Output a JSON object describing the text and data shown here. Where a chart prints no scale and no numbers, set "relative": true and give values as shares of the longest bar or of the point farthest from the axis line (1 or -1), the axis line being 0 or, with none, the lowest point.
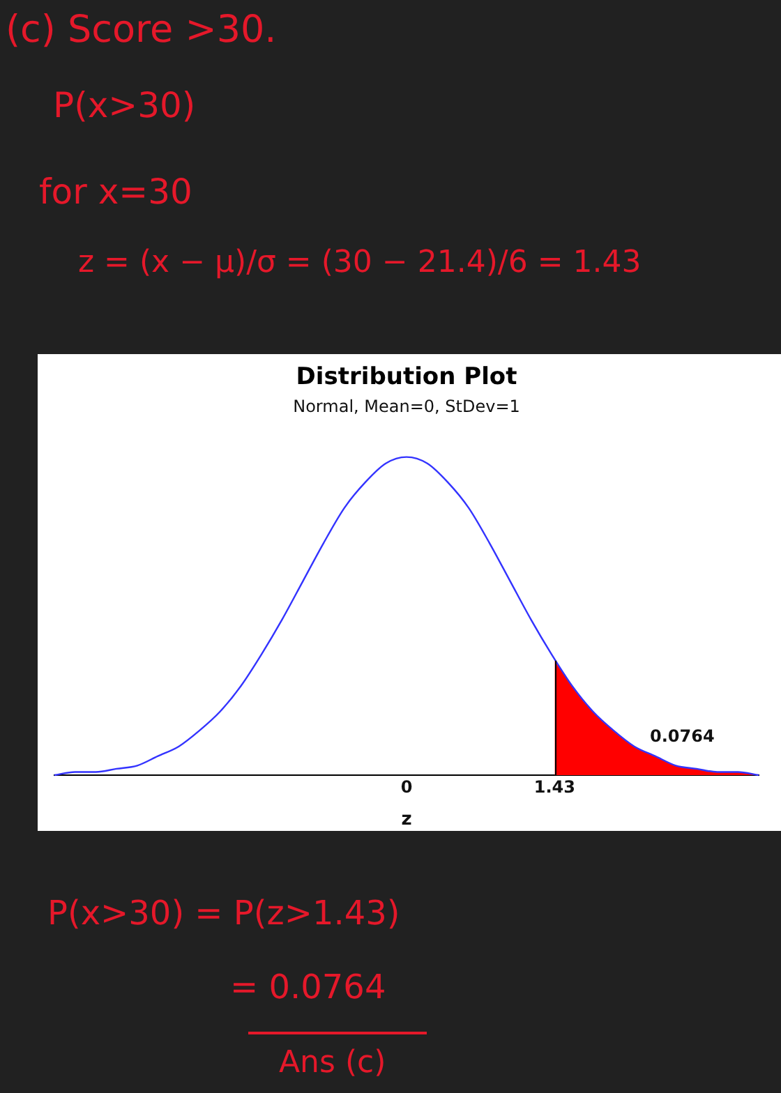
{
  "chart_data": {
    "type": "line",
    "title": "Distribution Plot",
    "subtitle": "Normal, Mean=0, StDev=1",
    "xlabel": "z",
    "relative": true,
    "xlim": [
      -3.4,
      3.4
    ],
    "xticks": [
      0,
      1.43
    ],
    "marker": "none",
    "series": [
      {
        "type": "line",
        "color": "#3333ff",
        "x": [
          -3.4,
          -3.2,
          -3.0,
          -2.8,
          -2.6,
          -2.4,
          -2.2,
          -2.0,
          -1.8,
          -1.6,
          -1.4,
          -1.2,
          -1.0,
          -0.8,
          -0.6,
          -0.4,
          -0.2,
          0,
          0.2,
          0.4,
          0.6,
          0.8,
          1.0,
          1.2,
          1.4,
          1.6,
          1.8,
          2.0,
          2.2,
          2.4,
          2.6,
          2.8,
          3.0,
          3.2,
          3.4
        ],
        "values": [
          0.0,
          0.01,
          0.01,
          0.02,
          0.03,
          0.06,
          0.09,
          0.14,
          0.2,
          0.28,
          0.38,
          0.49,
          0.61,
          0.73,
          0.84,
          0.92,
          0.98,
          1.0,
          0.98,
          0.92,
          0.84,
          0.73,
          0.61,
          0.49,
          0.38,
          0.28,
          0.2,
          0.14,
          0.09,
          0.06,
          0.03,
          0.02,
          0.01,
          0.01,
          0.0
        ]
      },
      {
        "type": "area",
        "color": "#ff0000",
        "x": [
          1.43,
          1.6,
          1.8,
          2.0,
          2.2,
          2.4,
          2.6,
          2.8,
          3.0,
          3.2,
          3.4
        ],
        "values": [
          0.36,
          0.28,
          0.2,
          0.14,
          0.09,
          0.06,
          0.03,
          0.02,
          0.01,
          0.01,
          0.0
        ]
      }
    ],
    "ref_lines": [
      {
        "axis": "x",
        "value": 1.43,
        "color": "#000000"
      }
    ],
    "annotations": [
      "(c) Score >30.",
      "P(x>30)",
      "for x=30",
      "z = (x − μ)/σ = (30 − 21.4)/6 = 1.43",
      "0.0764",
      "P(x>30) = P(z>1.43)",
      "= 0.0764",
      "Ans (c)"
    ]
  }
}
